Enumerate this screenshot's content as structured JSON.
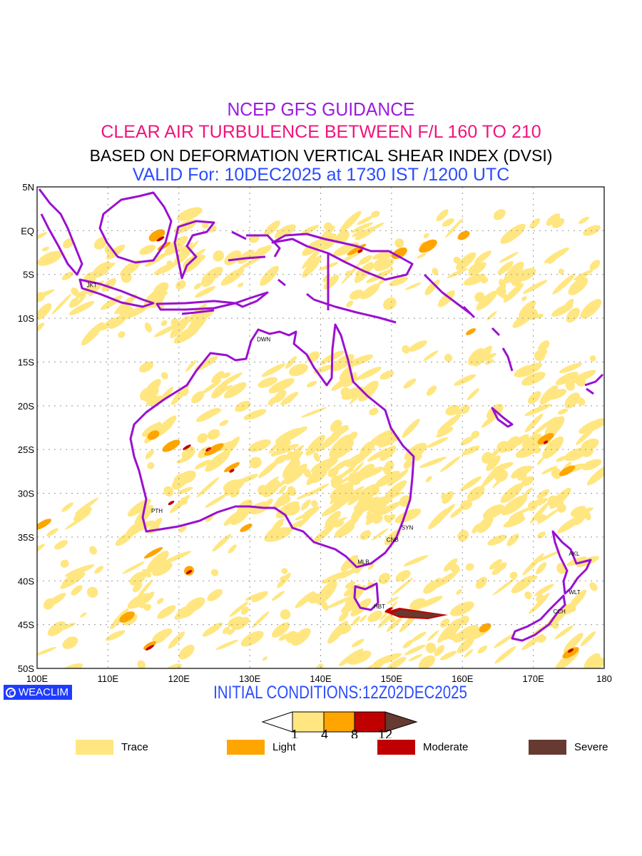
{
  "titles": {
    "line1": "NCEP GFS GUIDANCE",
    "line2": "CLEAR AIR TURBULENCE BETWEEN F/L 160 TO 210",
    "line3": "BASED ON DEFORMATION VERTICAL SHEAR INDEX (DVSI)",
    "line4": "VALID For: 10DEC2025 at 1730 IST /1200 UTC"
  },
  "map": {
    "lon_range": [
      100,
      180
    ],
    "lat_range": [
      -50,
      5
    ],
    "lat_labels": [
      "5N",
      "EQ",
      "5S",
      "10S",
      "15S",
      "20S",
      "25S",
      "30S",
      "35S",
      "40S",
      "45S",
      "50S"
    ],
    "lon_labels": [
      "100E",
      "110E",
      "120E",
      "130E",
      "140E",
      "150E",
      "160E",
      "170E",
      "180"
    ],
    "stations": [
      {
        "name": "JKT",
        "lon": 106.8,
        "lat": -6.2
      },
      {
        "name": "DWN",
        "lon": 130.8,
        "lat": -12.4
      },
      {
        "name": "PTH",
        "lon": 115.9,
        "lat": -32.0
      },
      {
        "name": "SYN",
        "lon": 151.2,
        "lat": -33.9
      },
      {
        "name": "CNB",
        "lon": 149.1,
        "lat": -35.3
      },
      {
        "name": "MLB",
        "lon": 145.0,
        "lat": -37.8
      },
      {
        "name": "HBT",
        "lon": 147.3,
        "lat": -42.9
      },
      {
        "name": "AKL",
        "lon": 174.8,
        "lat": -36.9
      },
      {
        "name": "WLT",
        "lon": 174.8,
        "lat": -41.3
      },
      {
        "name": "CCH",
        "lon": 172.6,
        "lat": -43.5
      }
    ]
  },
  "branding": {
    "logo_text": "WEACLIM"
  },
  "initial_conditions": "INITIAL CONDITIONS:12Z02DEC2025",
  "colorbar": {
    "ticks": [
      "1",
      "4",
      "8",
      "12"
    ],
    "colors": [
      "#ffe680",
      "#ffa500",
      "#c00000",
      "#663a30"
    ]
  },
  "legend": [
    {
      "label": "Trace",
      "color": "#ffe680"
    },
    {
      "label": "Light",
      "color": "#ffa500"
    },
    {
      "label": "Moderate",
      "color": "#c00000"
    },
    {
      "label": "Severe",
      "color": "#663a30"
    }
  ],
  "colors": {
    "coast": "#9a10d0",
    "trace": "#ffe680",
    "light": "#ffa500",
    "moderate": "#c00000",
    "severe": "#663a30"
  }
}
